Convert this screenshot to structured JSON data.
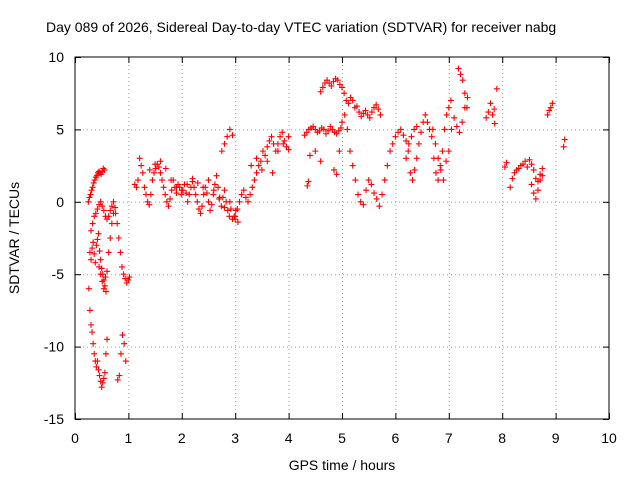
{
  "chart_data": {
    "type": "scatter",
    "title": "Day 089 of 2026, Sidereal Day-to-day VTEC variation (SDTVAR) for receiver nabg",
    "xlabel": "GPS time / hours",
    "ylabel": "SDTVAR / TECUs",
    "xlim": [
      0,
      10
    ],
    "ylim": [
      -15,
      10
    ],
    "xticks": [
      0,
      1,
      2,
      3,
      4,
      5,
      6,
      7,
      8,
      9,
      10
    ],
    "yticks": [
      -15,
      -10,
      -5,
      0,
      5,
      10
    ],
    "xtick_labels": [
      "0",
      "1",
      "2",
      "3",
      "4",
      "5",
      "6",
      "7",
      "8",
      "9",
      "10"
    ],
    "ytick_labels": [
      "-15",
      "-10",
      "-5",
      "0",
      "5",
      "10"
    ],
    "grid": true,
    "marker": "plus",
    "color": "#ff0000",
    "series": [
      {
        "name": "SDTVAR",
        "x": [
          0.25,
          0.27,
          0.29,
          0.31,
          0.33,
          0.35,
          0.37,
          0.39,
          0.41,
          0.43,
          0.45,
          0.47,
          0.49,
          0.51,
          0.53,
          0.55,
          0.28,
          0.3,
          0.32,
          0.34,
          0.36,
          0.38,
          0.4,
          0.42,
          0.44,
          0.46,
          0.48,
          0.5,
          0.52,
          0.54,
          0.56,
          0.58,
          0.26,
          0.28,
          0.3,
          0.32,
          0.34,
          0.36,
          0.38,
          0.4,
          0.42,
          0.44,
          0.46,
          0.48,
          0.5,
          0.52,
          0.54,
          0.56,
          0.58,
          0.6,
          0.3,
          0.33,
          0.36,
          0.39,
          0.42,
          0.45,
          0.48,
          0.51,
          0.54,
          0.57,
          0.6,
          0.63,
          0.66,
          0.69,
          0.72,
          0.75,
          0.45,
          0.48,
          0.51,
          0.54,
          0.57,
          0.6,
          0.63,
          0.66,
          0.69,
          0.72,
          0.76,
          0.79,
          0.82,
          0.85,
          0.88,
          0.91,
          0.94,
          0.97,
          1.0,
          1.02,
          0.8,
          0.83,
          0.86,
          0.89,
          0.92,
          0.95,
          1.12,
          1.15,
          1.18,
          1.21,
          1.24,
          1.27,
          1.3,
          1.33,
          1.36,
          1.39,
          1.42,
          1.45,
          1.48,
          1.51,
          1.54,
          1.57,
          1.6,
          1.63,
          1.66,
          1.69,
          1.72,
          1.75,
          1.78,
          1.81,
          1.84,
          1.87,
          1.9,
          1.93,
          1.96,
          1.99,
          2.02,
          2.05,
          2.08,
          2.11,
          2.14,
          2.17,
          2.2,
          2.23,
          2.26,
          2.29,
          2.32,
          2.35,
          2.38,
          2.41,
          2.44,
          2.47,
          2.5,
          2.53,
          2.56,
          2.59,
          2.62,
          2.65,
          2.68,
          2.71,
          2.74,
          2.77,
          2.8,
          2.83,
          2.86,
          2.89,
          2.92,
          2.95,
          2.98,
          3.01,
          1.4,
          1.5,
          1.6,
          1.7,
          1.8,
          1.9,
          2.0,
          2.1,
          2.2,
          2.3,
          2.4,
          2.5,
          2.6,
          2.7,
          2.8,
          2.9,
          3.0,
          3.05,
          3.0,
          3.04,
          3.08,
          3.12,
          3.16,
          3.2,
          3.24,
          3.28,
          3.32,
          3.36,
          3.4,
          3.44,
          3.48,
          3.52,
          3.56,
          3.6,
          3.64,
          3.68,
          3.72,
          3.76,
          3.8,
          3.84,
          3.88,
          3.92,
          3.96,
          4.0,
          2.75,
          2.8,
          2.85,
          2.9,
          2.95,
          3.3,
          3.4,
          3.5,
          3.6,
          3.7,
          3.8,
          3.9,
          4.0,
          4.3,
          4.34,
          4.38,
          4.42,
          4.46,
          4.5,
          4.54,
          4.58,
          4.62,
          4.66,
          4.7,
          4.74,
          4.78,
          4.82,
          4.86,
          4.9,
          4.94,
          4.98,
          4.4,
          4.5,
          4.6,
          4.35,
          4.37,
          4.6,
          4.64,
          4.68,
          4.72,
          4.76,
          4.8,
          4.84,
          4.88,
          4.92,
          4.96,
          5.0,
          5.04,
          5.08,
          5.12,
          5.16,
          5.2,
          5.24,
          5.28,
          5.32,
          5.36,
          5.4,
          5.44,
          5.48,
          5.52,
          5.56,
          5.6,
          5.64,
          5.68,
          5.72,
          4.85,
          4.9,
          4.95,
          5.0,
          5.05,
          5.1,
          5.15,
          5.2,
          5.25,
          5.3,
          5.35,
          5.4,
          5.45,
          5.5,
          5.55,
          5.6,
          5.65,
          5.7,
          5.75,
          5.8,
          5.85,
          5.9,
          5.95,
          6.0,
          6.05,
          6.1,
          6.15,
          6.2,
          6.25,
          6.3,
          6.35,
          6.4,
          6.2,
          6.24,
          6.28,
          6.32,
          6.36,
          6.4,
          6.44,
          6.48,
          6.52,
          6.56,
          6.6,
          6.64,
          6.68,
          6.72,
          6.76,
          6.8,
          6.84,
          6.88,
          6.92,
          6.96,
          7.0,
          7.04,
          6.7,
          6.75,
          6.8,
          6.85,
          6.9,
          6.95,
          7.0,
          7.05,
          7.1,
          7.15,
          7.2,
          7.25,
          7.3,
          7.35,
          7.18,
          7.22,
          7.26,
          7.3,
          7.34,
          7.7,
          7.74,
          7.78,
          7.82,
          7.86,
          7.9,
          7.85,
          8.05,
          8.08,
          8.15,
          8.19,
          8.23,
          8.27,
          8.31,
          8.35,
          8.39,
          8.43,
          8.47,
          8.51,
          8.55,
          8.59,
          8.63,
          8.67,
          8.71,
          8.75,
          8.55,
          8.59,
          8.63,
          8.67,
          8.71,
          8.75,
          8.85,
          8.88,
          8.91,
          8.94,
          9.15,
          9.17
        ],
        "y": [
          0.0,
          0.3,
          0.5,
          0.8,
          1.0,
          1.3,
          1.5,
          1.7,
          1.8,
          2.0,
          2.1,
          2.0,
          1.9,
          2.1,
          2.3,
          2.2,
          -3.5,
          -4.0,
          -3.2,
          -2.8,
          -3.6,
          -4.2,
          -3.0,
          -2.6,
          -2.2,
          -3.4,
          -4.0,
          -4.6,
          -5.0,
          -5.4,
          -5.8,
          -6.2,
          -6.0,
          -7.5,
          -8.5,
          -9.0,
          -9.8,
          -10.5,
          -11.0,
          -11.4,
          -11.0,
          -11.6,
          -12.0,
          -12.4,
          -12.8,
          -12.5,
          -12.2,
          -11.8,
          -10.5,
          -9.5,
          -2.0,
          -1.5,
          -1.0,
          -0.8,
          -0.5,
          -0.2,
          0.0,
          -0.3,
          -0.6,
          -1.0,
          -1.2,
          -1.0,
          -0.6,
          -0.3,
          0.0,
          -0.4,
          -4.5,
          -5.0,
          -5.5,
          -6.0,
          -5.2,
          -4.8,
          -3.5,
          -2.5,
          -1.5,
          -0.8,
          -0.8,
          -1.5,
          -2.5,
          -3.5,
          -4.5,
          -5.0,
          -5.3,
          -5.6,
          -5.4,
          -5.2,
          -12.3,
          -12.0,
          -10.5,
          -9.2,
          -9.8,
          -11.0,
          1.2,
          1.0,
          1.5,
          3.0,
          2.5,
          2.0,
          1.0,
          0.5,
          0.0,
          -0.2,
          0.5,
          1.5,
          2.0,
          2.3,
          2.6,
          2.4,
          2.0,
          1.5,
          1.0,
          0.5,
          0.0,
          -0.3,
          0.2,
          0.8,
          1.5,
          1.0,
          0.6,
          1.2,
          1.0,
          0.5,
          0.8,
          1.2,
          0.6,
          0.0,
          0.5,
          1.0,
          1.4,
          1.0,
          0.5,
          0.0,
          -0.5,
          -0.8,
          -0.3,
          0.5,
          1.0,
          0.6,
          0.0,
          -0.6,
          -0.2,
          0.5,
          1.2,
          1.8,
          1.0,
          0.3,
          -0.3,
          0.3,
          0.8,
          0.0,
          -0.6,
          -1.0,
          -0.5,
          -1.2,
          -1.0,
          -0.6,
          2.2,
          2.6,
          2.8,
          2.3,
          1.5,
          1.0,
          0.8,
          1.2,
          1.6,
          1.3,
          1.0,
          1.5,
          0.8,
          0.2,
          -0.4,
          0.0,
          -1.0,
          -1.4,
          -1.2,
          -0.5,
          0.0,
          0.5,
          0.8,
          0.3,
          0.0,
          0.5,
          1.0,
          1.5,
          2.0,
          2.5,
          2.8,
          3.5,
          3.2,
          3.8,
          4.2,
          4.5,
          4.0,
          3.5,
          4.0,
          4.5,
          4.8,
          4.2,
          3.8,
          4.5,
          3.5,
          4.0,
          4.5,
          5.0,
          4.6,
          2.5,
          3.0,
          2.2,
          2.8,
          2.0,
          3.5,
          4.0,
          3.6,
          4.6,
          4.8,
          5.0,
          5.1,
          5.2,
          5.0,
          4.8,
          4.9,
          5.1,
          5.0,
          4.7,
          4.9,
          5.2,
          5.0,
          4.8,
          4.7,
          4.9,
          5.1,
          3.2,
          3.5,
          2.8,
          1.1,
          1.4,
          7.6,
          7.9,
          8.2,
          8.4,
          8.2,
          8.0,
          8.3,
          8.5,
          8.4,
          8.1,
          7.9,
          7.5,
          7.0,
          6.8,
          7.2,
          7.0,
          6.5,
          6.6,
          6.2,
          5.9,
          6.1,
          6.3,
          6.0,
          5.8,
          6.2,
          6.5,
          6.7,
          6.4,
          6.0,
          2.2,
          1.9,
          3.5,
          5.5,
          6.0,
          5.0,
          3.5,
          2.5,
          1.5,
          0.5,
          0.0,
          -0.2,
          0.8,
          1.5,
          1.2,
          0.6,
          0.2,
          -0.3,
          0.5,
          1.5,
          2.5,
          3.5,
          4.0,
          4.5,
          4.8,
          5.0,
          4.6,
          4.2,
          4.0,
          4.5,
          5.0,
          5.2,
          3.0,
          3.5,
          2.0,
          1.5,
          2.2,
          3.0,
          4.0,
          4.8,
          5.5,
          6.0,
          5.5,
          5.0,
          4.5,
          3.0,
          2.0,
          1.5,
          2.5,
          3.5,
          5.0,
          6.0,
          6.5,
          7.0,
          5.0,
          4.0,
          3.0,
          2.2,
          1.5,
          2.8,
          3.5,
          5.0,
          5.8,
          5.2,
          4.8,
          5.5,
          6.5,
          7.2,
          9.2,
          8.8,
          8.4,
          7.5,
          6.5,
          5.8,
          6.2,
          6.8,
          6.0,
          5.4,
          7.8,
          6.4,
          2.4,
          2.7,
          1.0,
          1.6,
          2.0,
          2.2,
          2.3,
          2.5,
          2.6,
          2.8,
          2.4,
          2.9,
          2.6,
          2.2,
          1.6,
          1.4,
          1.9,
          1.8,
          1.2,
          0.6,
          0.2,
          0.8,
          1.5,
          2.3,
          6.0,
          6.3,
          6.5,
          6.8,
          3.8,
          4.3
        ]
      }
    ]
  }
}
